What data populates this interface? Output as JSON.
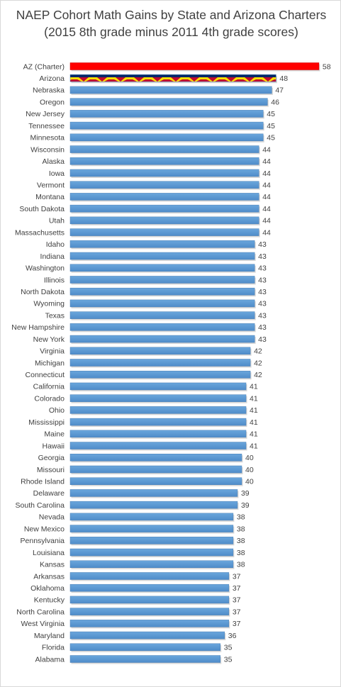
{
  "chart_data": {
    "type": "bar",
    "orientation": "horizontal",
    "title": "NAEP Cohort Math Gains by State and Arizona Charters (2015 8th grade minus 2011 4th grade scores)",
    "xlabel": "",
    "ylabel": "",
    "xlim": [
      0,
      58
    ],
    "grid": false,
    "legend": "none",
    "data_labels": true,
    "colors": {
      "default": "#5b9bd5",
      "highlight": "#ff0000",
      "arizona_flag": [
        "#bf0a30",
        "#002868",
        "#fedf00"
      ]
    },
    "categories": [
      "AZ (Charter)",
      "Arizona",
      "Nebraska",
      "Oregon",
      "New Jersey",
      "Tennessee",
      "Minnesota",
      "Wisconsin",
      "Alaska",
      "Iowa",
      "Vermont",
      "Montana",
      "South Dakota",
      "Utah",
      "Massachusetts",
      "Idaho",
      "Indiana",
      "Washington",
      "Illinois",
      "North Dakota",
      "Wyoming",
      "Texas",
      "New Hampshire",
      "New York",
      "Virginia",
      "Michigan",
      "Connecticut",
      "California",
      "Colorado",
      "Ohio",
      "Mississippi",
      "Maine",
      "Hawaii",
      "Georgia",
      "Missouri",
      "Rhode Island",
      "Delaware",
      "South Carolina",
      "Nevada",
      "New Mexico",
      "Pennsylvania",
      "Louisiana",
      "Kansas",
      "Arkansas",
      "Oklahoma",
      "Kentucky",
      "North Carolina",
      "West Virginia",
      "Maryland",
      "Florida",
      "Alabama"
    ],
    "values": [
      58,
      48,
      47,
      46,
      45,
      45,
      45,
      44,
      44,
      44,
      44,
      44,
      44,
      44,
      44,
      43,
      43,
      43,
      43,
      43,
      43,
      43,
      43,
      43,
      42,
      42,
      42,
      41,
      41,
      41,
      41,
      41,
      41,
      40,
      40,
      40,
      39,
      39,
      38,
      38,
      38,
      38,
      38,
      37,
      37,
      37,
      37,
      37,
      36,
      35,
      35
    ]
  }
}
